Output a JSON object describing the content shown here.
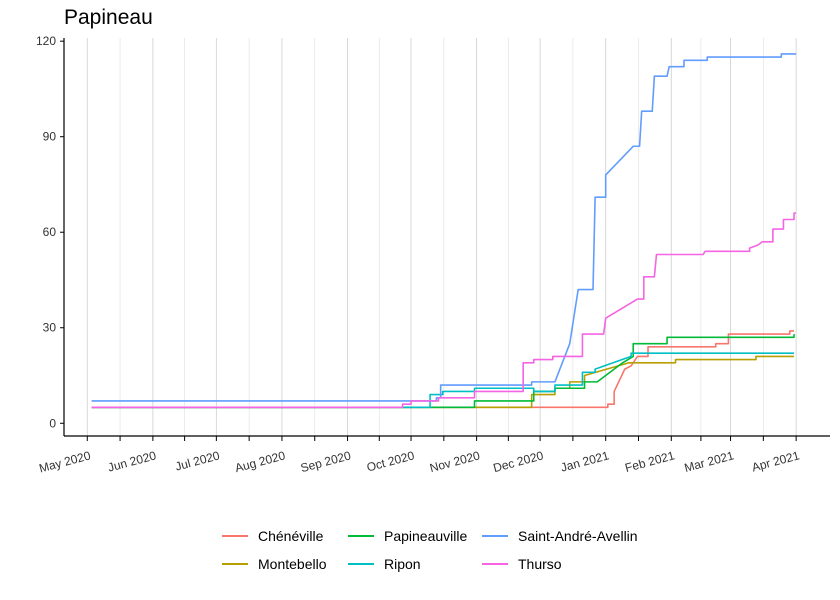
{
  "chart_data": {
    "type": "line",
    "title": "Papineau",
    "xlabel": "",
    "ylabel": "",
    "x_range": [
      "2020-04-20",
      "2021-04-17"
    ],
    "ylim": [
      -4,
      121
    ],
    "y_ticks": [
      0,
      30,
      60,
      90,
      120
    ],
    "x_ticks": [
      {
        "date": "2020-05-01",
        "label": "May 2020"
      },
      {
        "date": "2020-06-01",
        "label": "Jun 2020"
      },
      {
        "date": "2020-07-01",
        "label": "Jul 2020"
      },
      {
        "date": "2020-08-01",
        "label": "Aug 2020"
      },
      {
        "date": "2020-09-01",
        "label": "Sep 2020"
      },
      {
        "date": "2020-10-01",
        "label": "Oct 2020"
      },
      {
        "date": "2020-11-01",
        "label": "Nov 2020"
      },
      {
        "date": "2020-12-01",
        "label": "Dec 2020"
      },
      {
        "date": "2021-01-01",
        "label": "Jan 2021"
      },
      {
        "date": "2021-02-01",
        "label": "Feb 2021"
      },
      {
        "date": "2021-03-01",
        "label": "Mar 2021"
      },
      {
        "date": "2021-04-01",
        "label": "Apr 2021"
      }
    ],
    "grid": true,
    "legend_position": "bottom",
    "series": [
      {
        "name": "Chénéville",
        "color": "#F8766D",
        "points": [
          [
            "2020-05-03",
            5
          ],
          [
            "2021-01-02",
            5
          ],
          [
            "2021-01-02",
            6
          ],
          [
            "2021-01-05",
            6
          ],
          [
            "2021-01-05",
            10
          ],
          [
            "2021-01-10",
            17
          ],
          [
            "2021-01-13",
            18
          ],
          [
            "2021-01-16",
            21
          ],
          [
            "2021-01-21",
            21
          ],
          [
            "2021-01-21",
            24
          ],
          [
            "2021-02-22",
            24
          ],
          [
            "2021-02-22",
            25
          ],
          [
            "2021-02-28",
            25
          ],
          [
            "2021-02-28",
            28
          ],
          [
            "2021-03-29",
            28
          ],
          [
            "2021-03-29",
            29
          ],
          [
            "2021-03-31",
            29
          ]
        ]
      },
      {
        "name": "Montebello",
        "color": "#B79F00",
        "points": [
          [
            "2020-05-03",
            5
          ],
          [
            "2020-11-27",
            5
          ],
          [
            "2020-11-27",
            9
          ],
          [
            "2020-12-08",
            9
          ],
          [
            "2020-12-08",
            11
          ],
          [
            "2020-12-15",
            11
          ],
          [
            "2020-12-15",
            13
          ],
          [
            "2020-12-22",
            13
          ],
          [
            "2020-12-22",
            15
          ],
          [
            "2021-01-12",
            19
          ],
          [
            "2021-02-03",
            19
          ],
          [
            "2021-02-03",
            20
          ],
          [
            "2021-03-13",
            20
          ],
          [
            "2021-03-13",
            21
          ],
          [
            "2021-03-31",
            21
          ]
        ]
      },
      {
        "name": "Papineauville",
        "color": "#00BA38",
        "points": [
          [
            "2020-05-03",
            5
          ],
          [
            "2020-10-31",
            5
          ],
          [
            "2020-10-31",
            7
          ],
          [
            "2020-11-28",
            7
          ],
          [
            "2020-11-28",
            10
          ],
          [
            "2020-12-08",
            10
          ],
          [
            "2020-12-08",
            11
          ],
          [
            "2020-12-22",
            11
          ],
          [
            "2020-12-22",
            13
          ],
          [
            "2020-12-28",
            13
          ],
          [
            "2021-01-09",
            19
          ],
          [
            "2021-01-14",
            21
          ],
          [
            "2021-01-14",
            25
          ],
          [
            "2021-01-30",
            25
          ],
          [
            "2021-01-30",
            27
          ],
          [
            "2021-03-31",
            27
          ],
          [
            "2021-03-31",
            28
          ]
        ]
      },
      {
        "name": "Ripon",
        "color": "#00BFC4",
        "points": [
          [
            "2020-05-03",
            5
          ],
          [
            "2020-10-10",
            5
          ],
          [
            "2020-10-10",
            9
          ],
          [
            "2020-10-16",
            9
          ],
          [
            "2020-10-16",
            10
          ],
          [
            "2020-10-31",
            10
          ],
          [
            "2020-10-31",
            11
          ],
          [
            "2020-11-28",
            11
          ],
          [
            "2020-11-28",
            10
          ],
          [
            "2020-12-08",
            10
          ],
          [
            "2020-12-08",
            12
          ],
          [
            "2020-12-21",
            12
          ],
          [
            "2020-12-21",
            16
          ],
          [
            "2020-12-27",
            16
          ],
          [
            "2020-12-27",
            17
          ],
          [
            "2021-01-13",
            21
          ],
          [
            "2021-01-13",
            22
          ],
          [
            "2021-03-31",
            22
          ]
        ]
      },
      {
        "name": "Saint-André-Avellin",
        "color": "#619CFF",
        "points": [
          [
            "2020-05-03",
            7
          ],
          [
            "2020-10-13",
            7
          ],
          [
            "2020-10-13",
            8
          ],
          [
            "2020-10-15",
            8
          ],
          [
            "2020-10-15",
            12
          ],
          [
            "2020-11-27",
            12
          ],
          [
            "2020-11-27",
            13
          ],
          [
            "2020-12-08",
            13
          ],
          [
            "2020-12-15",
            25
          ],
          [
            "2020-12-19",
            42
          ],
          [
            "2020-12-26",
            42
          ],
          [
            "2020-12-27",
            71
          ],
          [
            "2021-01-01",
            71
          ],
          [
            "2021-01-01",
            78
          ],
          [
            "2021-01-14",
            87
          ],
          [
            "2021-01-17",
            87
          ],
          [
            "2021-01-18",
            98
          ],
          [
            "2021-01-23",
            98
          ],
          [
            "2021-01-24",
            109
          ],
          [
            "2021-01-30",
            109
          ],
          [
            "2021-01-31",
            112
          ],
          [
            "2021-02-07",
            112
          ],
          [
            "2021-02-07",
            114
          ],
          [
            "2021-02-18",
            114
          ],
          [
            "2021-02-18",
            115
          ],
          [
            "2021-03-25",
            115
          ],
          [
            "2021-03-25",
            116
          ],
          [
            "2021-04-01",
            116
          ]
        ]
      },
      {
        "name": "Thurso",
        "color": "#F564E3",
        "points": [
          [
            "2020-05-03",
            5
          ],
          [
            "2020-09-27",
            5
          ],
          [
            "2020-09-27",
            6
          ],
          [
            "2020-10-01",
            6
          ],
          [
            "2020-10-01",
            7
          ],
          [
            "2020-10-14",
            7
          ],
          [
            "2020-10-14",
            8
          ],
          [
            "2020-10-31",
            8
          ],
          [
            "2020-10-31",
            10
          ],
          [
            "2020-11-23",
            10
          ],
          [
            "2020-11-23",
            19
          ],
          [
            "2020-11-28",
            19
          ],
          [
            "2020-11-28",
            20
          ],
          [
            "2020-12-07",
            20
          ],
          [
            "2020-12-07",
            21
          ],
          [
            "2020-12-21",
            21
          ],
          [
            "2020-12-21",
            28
          ],
          [
            "2020-12-31",
            28
          ],
          [
            "2021-01-01",
            33
          ],
          [
            "2021-01-16",
            39
          ],
          [
            "2021-01-19",
            39
          ],
          [
            "2021-01-19",
            46
          ],
          [
            "2021-01-24",
            46
          ],
          [
            "2021-01-25",
            53
          ],
          [
            "2021-02-16",
            53
          ],
          [
            "2021-02-17",
            54
          ],
          [
            "2021-03-10",
            54
          ],
          [
            "2021-03-10",
            55
          ],
          [
            "2021-03-14",
            56
          ],
          [
            "2021-03-16",
            57
          ],
          [
            "2021-03-21",
            57
          ],
          [
            "2021-03-21",
            61
          ],
          [
            "2021-03-26",
            61
          ],
          [
            "2021-03-26",
            64
          ],
          [
            "2021-03-31",
            64
          ],
          [
            "2021-03-31",
            66
          ],
          [
            "2021-04-01",
            66
          ]
        ]
      }
    ]
  }
}
